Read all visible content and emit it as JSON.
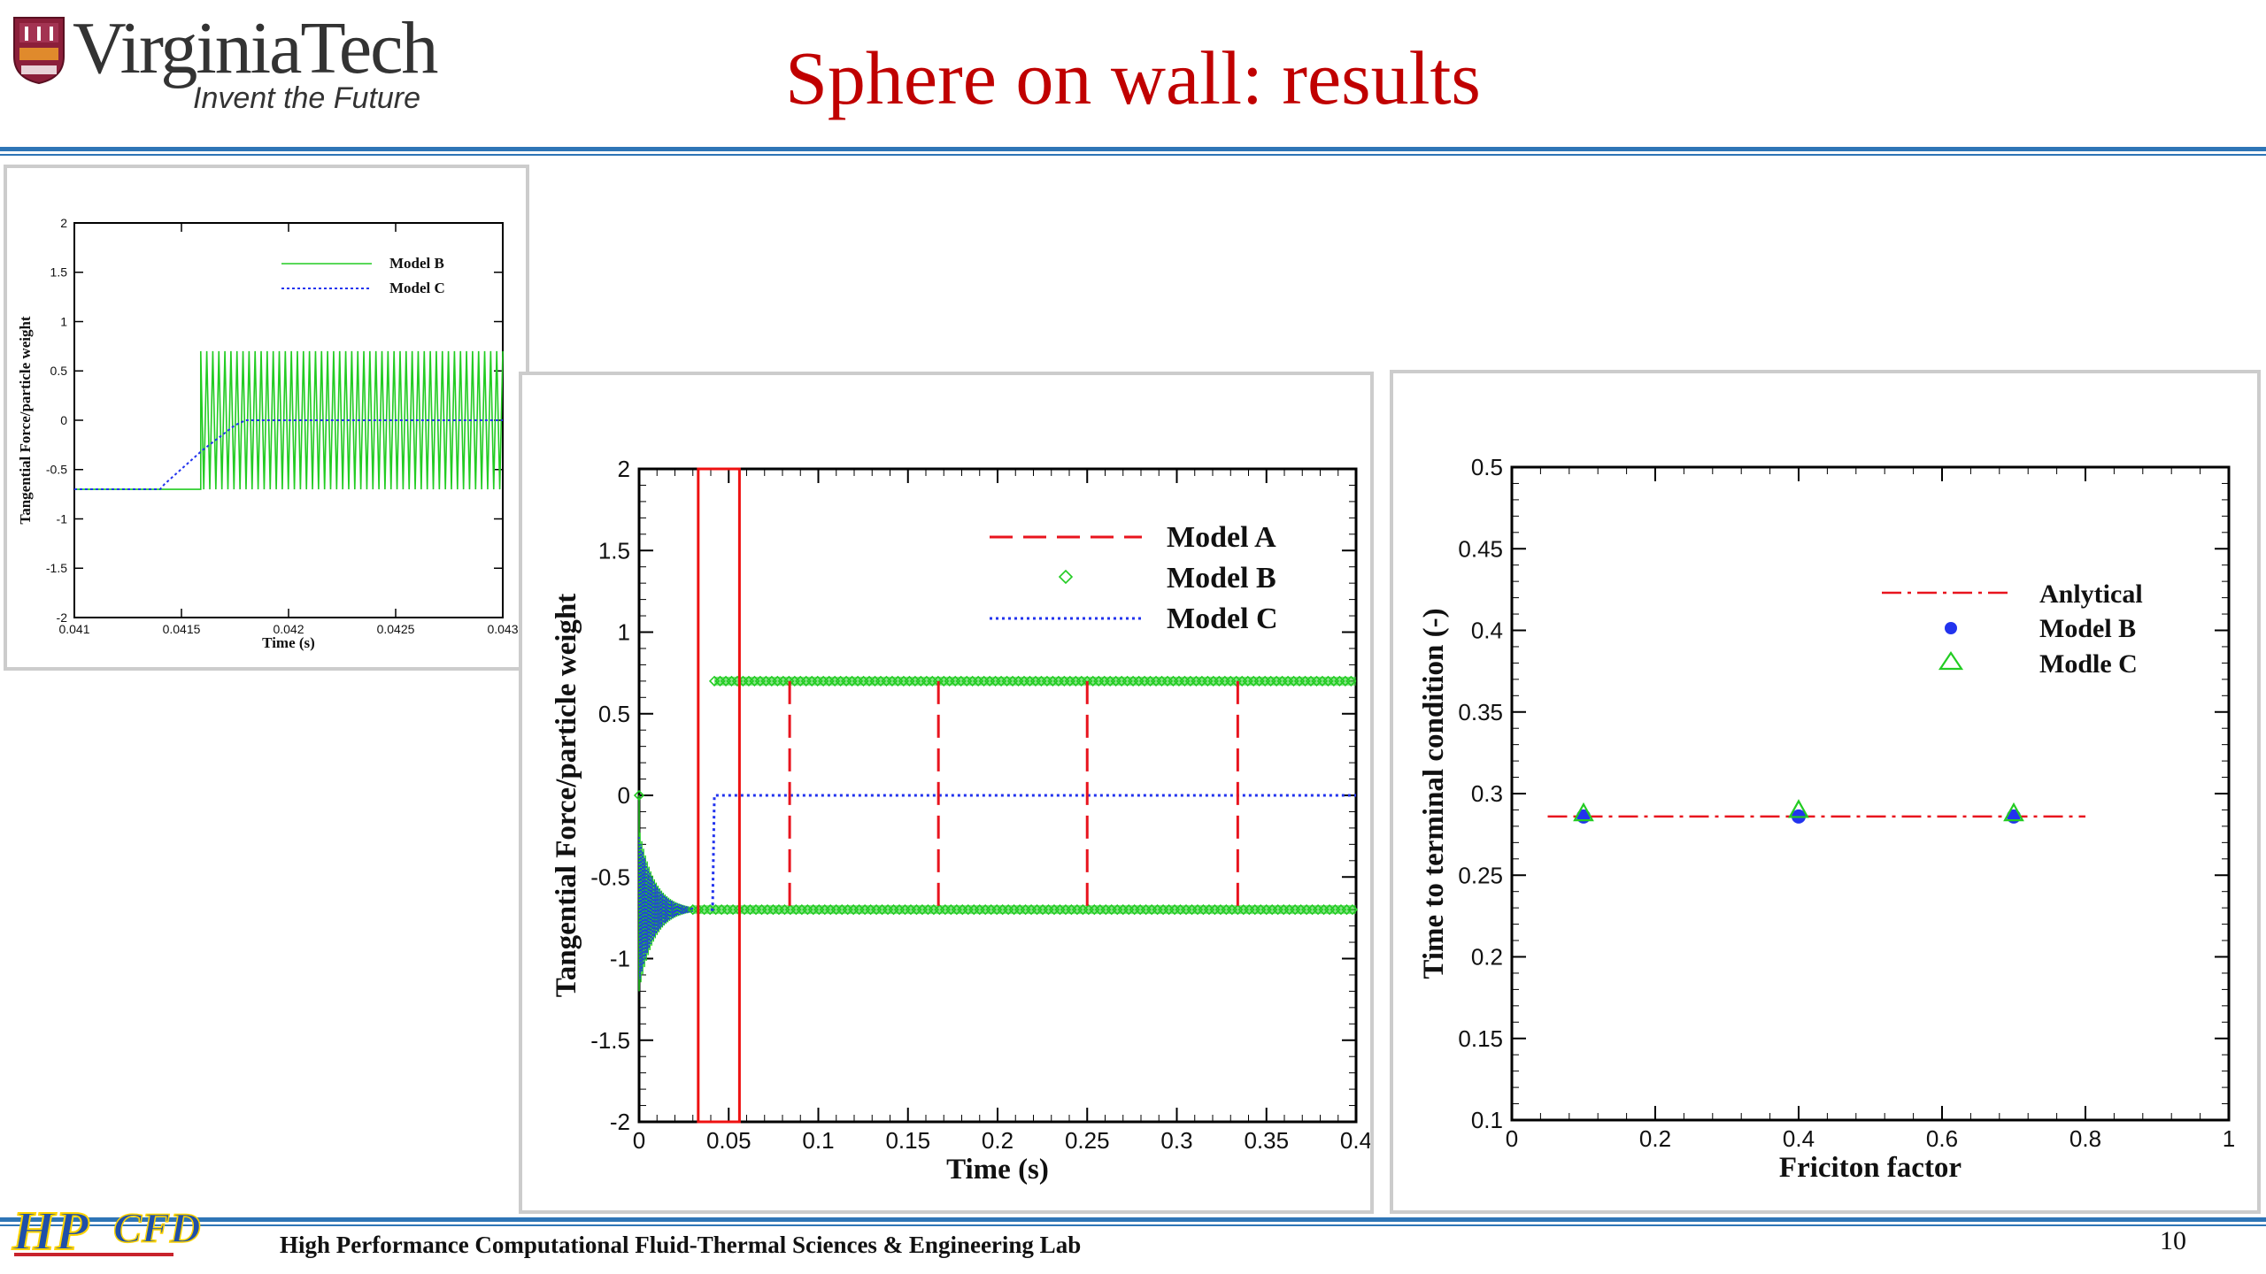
{
  "header": {
    "logo_name": "VirginiaTech",
    "logo_tagline": "Invent the Future",
    "slide_title": "Sphere on wall: results"
  },
  "footer": {
    "logo_name": "HPCFD",
    "lab_name": "High Performance Computational Fluid-Thermal Sciences & Engineering Lab",
    "page_number": "10"
  },
  "colors": {
    "title": "#c00000",
    "rule": "#2e75b6",
    "model_a": "#e8141e",
    "model_b": "#22cc22",
    "model_c": "#2233ee",
    "analytical": "#e8141e"
  },
  "chart_data": [
    {
      "id": "inset",
      "type": "line",
      "xlabel": "Time (s)",
      "ylabel": "Tangential Force/particle weight",
      "xlim": [
        0.041,
        0.043
      ],
      "ylim": [
        -2,
        2
      ],
      "xticks": [
        0.041,
        0.0415,
        0.042,
        0.0425,
        0.043
      ],
      "xtick_labels": [
        "0.041",
        "0.0415",
        "0.042",
        "0.0425",
        "0.043"
      ],
      "yticks": [
        -2,
        -1.5,
        -1,
        -0.5,
        0,
        0.5,
        1,
        1.5,
        2
      ],
      "ytick_labels": [
        "-2",
        "-1.5",
        "-1",
        "-0.5",
        "0",
        "0.5",
        "1",
        "1.5",
        "2"
      ],
      "legend_position": "top-right",
      "series": [
        {
          "name": "Model B",
          "style": "solid",
          "color": "#22cc22",
          "description_points": {
            "before_x": 0.04159,
            "before_y": -0.7,
            "after_low": -0.7,
            "after_high": 0.7,
            "oscillation_cycles": 50
          }
        },
        {
          "name": "Model C",
          "style": "dotted",
          "color": "#2233ee",
          "x": [
            0.041,
            0.0414,
            0.04142,
            0.0416,
            0.04175,
            0.0418,
            0.042,
            0.043
          ],
          "y": [
            -0.7,
            -0.7,
            -0.65,
            -0.3,
            -0.05,
            0,
            0,
            0
          ]
        }
      ]
    },
    {
      "id": "main",
      "type": "line",
      "xlabel": "Time (s)",
      "ylabel": "Tangential Force/particle weight",
      "xlim": [
        0,
        0.4
      ],
      "ylim": [
        -2,
        2
      ],
      "xticks": [
        0,
        0.05,
        0.1,
        0.15,
        0.2,
        0.25,
        0.3,
        0.35,
        0.4
      ],
      "xtick_labels": [
        "0",
        "0.05",
        "0.1",
        "0.15",
        "0.2",
        "0.25",
        "0.3",
        "0.35",
        "0.4"
      ],
      "yticks": [
        -2,
        -1.5,
        -1,
        -0.5,
        0,
        0.5,
        1,
        1.5,
        2
      ],
      "ytick_labels": [
        "-2",
        "-1.5",
        "-1",
        "-0.5",
        "0",
        "0.5",
        "1",
        "1.5",
        "2"
      ],
      "legend_position": "top-right",
      "highlight_box": {
        "x": [
          0.033,
          0.056
        ],
        "y": [
          -2,
          2
        ]
      },
      "series": [
        {
          "name": "Model A",
          "style": "dashed",
          "color": "#e8141e",
          "levels": [
            -0.7,
            0.7
          ],
          "switch_times": [
            0.084,
            0.167,
            0.25,
            0.334
          ]
        },
        {
          "name": "Model B",
          "style": "diamond-markers",
          "color": "#22cc22",
          "levels": [
            -0.7,
            0.7
          ],
          "upper_start": 0.042,
          "lower_start": 0.03
        },
        {
          "name": "Model C",
          "style": "dotted",
          "color": "#2233ee",
          "x": [
            0.04,
            0.041,
            0.042,
            0.4
          ],
          "y": [
            -0.7,
            -0.7,
            0,
            0
          ]
        }
      ],
      "transient": {
        "x_range": [
          0,
          0.03
        ],
        "amplitude_start": 0.5,
        "center": -0.7
      }
    },
    {
      "id": "right",
      "type": "scatter",
      "xlabel": "Friciton factor",
      "ylabel": "Time to terminal condition (-)",
      "xlim": [
        0,
        1
      ],
      "ylim": [
        0.1,
        0.5
      ],
      "xticks": [
        0,
        0.2,
        0.4,
        0.6,
        0.8,
        1
      ],
      "xtick_labels": [
        "0",
        "0.2",
        "0.4",
        "0.6",
        "0.8",
        "1"
      ],
      "yticks": [
        0.1,
        0.15,
        0.2,
        0.25,
        0.3,
        0.35,
        0.4,
        0.45,
        0.5
      ],
      "ytick_labels": [
        "0.1",
        "0.15",
        "0.2",
        "0.25",
        "0.3",
        "0.35",
        "0.4",
        "0.45",
        "0.5"
      ],
      "legend_position": "top-right",
      "series": [
        {
          "name": "Anlytical",
          "style": "dash-dot",
          "color": "#e8141e",
          "x": [
            0.05,
            0.8
          ],
          "y": [
            0.286,
            0.286
          ]
        },
        {
          "name": "Model B",
          "style": "filled-circle",
          "color": "#2233ee",
          "x": [
            0.1,
            0.4,
            0.7
          ],
          "y": [
            0.286,
            0.286,
            0.286
          ]
        },
        {
          "name": "Modle C",
          "style": "open-triangle",
          "color": "#22cc22",
          "x": [
            0.1,
            0.4,
            0.7
          ],
          "y": [
            0.288,
            0.29,
            0.288
          ]
        }
      ]
    }
  ]
}
